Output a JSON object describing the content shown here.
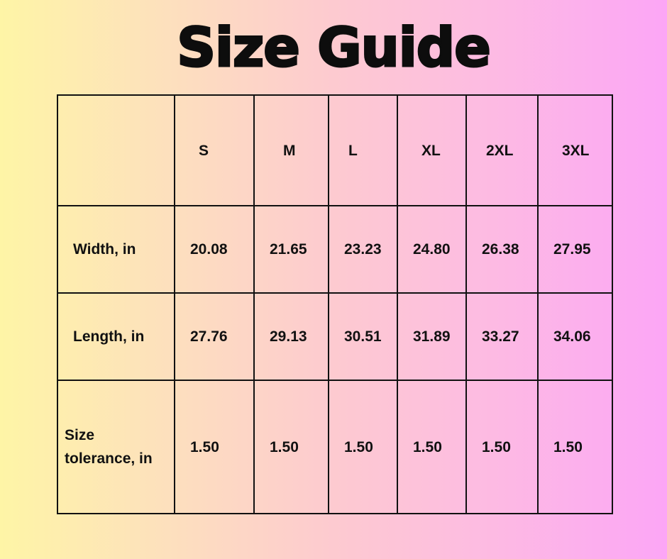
{
  "title": "Size Guide",
  "table": {
    "headers": [
      "",
      "S",
      "M",
      "L",
      "XL",
      "2XL",
      "3XL"
    ],
    "rows": [
      {
        "label": "Width, in",
        "values": [
          "20.08",
          "21.65",
          "23.23",
          "24.80",
          "26.38",
          "27.95"
        ]
      },
      {
        "label": "Length, in",
        "values": [
          "27.76",
          "29.13",
          "30.51",
          "31.89",
          "33.27",
          "34.06"
        ]
      },
      {
        "label": "Size tolerance, in",
        "values": [
          "1.50",
          "1.50",
          "1.50",
          "1.50",
          "1.50",
          "1.50"
        ]
      }
    ]
  },
  "colors": {
    "gradient_left": "#fef5a6",
    "gradient_right": "#fca6f6",
    "text": "#111111"
  }
}
